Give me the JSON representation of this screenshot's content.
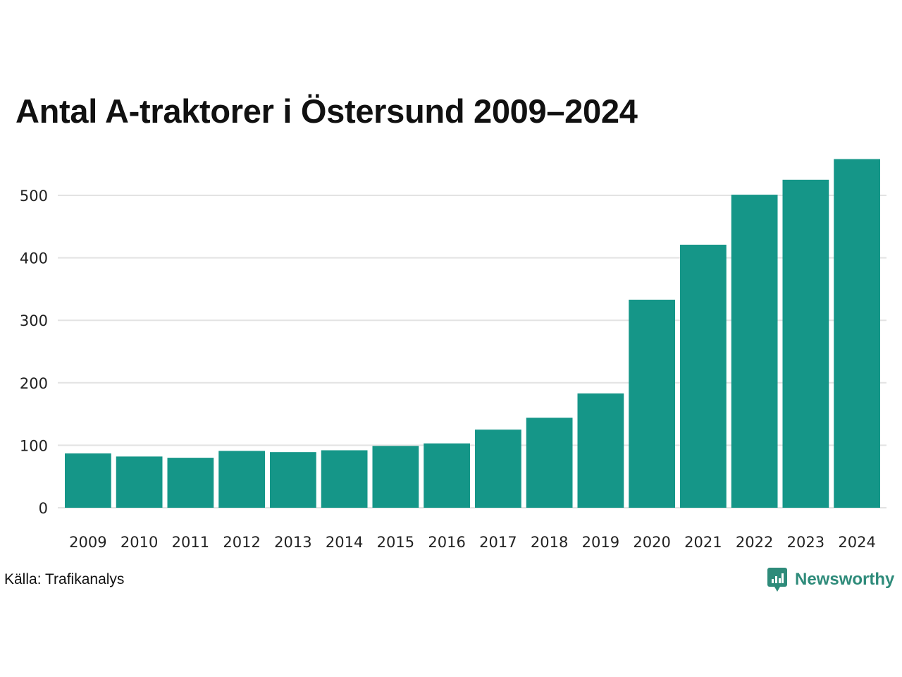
{
  "chart_data": {
    "type": "bar",
    "title": "Antal A-traktorer i Östersund 2009–2024",
    "categories": [
      "2009",
      "2010",
      "2011",
      "2012",
      "2013",
      "2014",
      "2015",
      "2016",
      "2017",
      "2018",
      "2019",
      "2020",
      "2021",
      "2022",
      "2023",
      "2024"
    ],
    "values": [
      87,
      82,
      80,
      91,
      89,
      92,
      99,
      103,
      125,
      144,
      183,
      333,
      421,
      501,
      525,
      558
    ],
    "ylim": [
      0,
      560
    ],
    "yticks": [
      0,
      100,
      200,
      300,
      400,
      500
    ],
    "xlabel": "",
    "ylabel": "",
    "grid": true,
    "bar_color": "#159688",
    "grid_color": "#e3e3e3"
  },
  "source": {
    "text": "Källa: Trafikanalys"
  },
  "brand": {
    "name": "Newsworthy",
    "color": "#2e8b7a",
    "icon": "newsworthy-logo-icon"
  }
}
